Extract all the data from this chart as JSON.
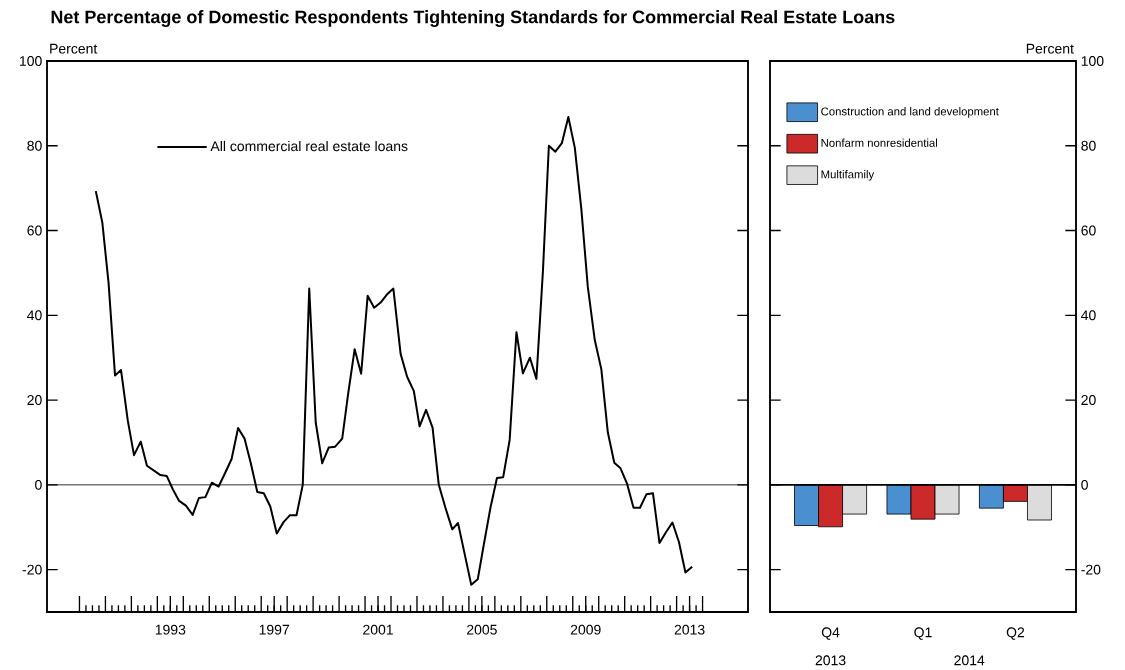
{
  "chart_data": [
    {
      "type": "line",
      "title": "Net Percentage of Domestic Respondents Tightening Standards for Commercial Real Estate Loans",
      "ylabel": "Percent",
      "xlim": [
        1988.75,
        2015.75
      ],
      "ylim": [
        -30,
        100
      ],
      "yticks": [
        -20,
        0,
        20,
        40,
        60,
        80,
        100
      ],
      "xticks": [
        {
          "value": 1990,
          "label": null
        },
        {
          "value": 1991,
          "label": null
        },
        {
          "value": 1992,
          "label": null
        },
        {
          "value": 1993,
          "label": null
        },
        {
          "value": 1994,
          "label": null
        },
        {
          "value": 1995,
          "label": null
        },
        {
          "value": 1996,
          "label": null
        },
        {
          "value": 1997,
          "label": null
        },
        {
          "value": 1998,
          "label": null
        },
        {
          "value": 1999,
          "label": null
        },
        {
          "value": 2000,
          "label": null
        },
        {
          "value": 2001,
          "label": null
        },
        {
          "value": 2002,
          "label": null
        },
        {
          "value": 2003,
          "label": null
        },
        {
          "value": 2004,
          "label": null
        },
        {
          "value": 2005,
          "label": null
        },
        {
          "value": 2006,
          "label": null
        },
        {
          "value": 2007,
          "label": null
        },
        {
          "value": 2008,
          "label": null
        },
        {
          "value": 2009,
          "label": null
        },
        {
          "value": 2010,
          "label": null
        },
        {
          "value": 2011,
          "label": null
        },
        {
          "value": 2012,
          "label": null
        },
        {
          "value": 2013,
          "label": null
        },
        {
          "value": 2014,
          "label": null
        },
        {
          "value": 1993.5,
          "label": "1993"
        },
        {
          "value": 1997.5,
          "label": "1997"
        },
        {
          "value": 2001.5,
          "label": "2001"
        },
        {
          "value": 2005.5,
          "label": "2005"
        },
        {
          "value": 2009.5,
          "label": "2009"
        },
        {
          "value": 2013.5,
          "label": "2013"
        }
      ],
      "legend": "top left",
      "ref_lines": [
        {
          "axis": "y",
          "value": 0
        }
      ],
      "series": [
        {
          "name": "All commercial real estate loans",
          "color": "#000000",
          "x": [
            1990.63,
            1990.88,
            1991.12,
            1991.37,
            1991.6,
            1991.86,
            1992.1,
            1992.36,
            1992.6,
            1992.86,
            1993.12,
            1993.36,
            1993.6,
            1993.84,
            1994.1,
            1994.36,
            1994.6,
            1994.85,
            1995.1,
            1995.36,
            1995.61,
            1995.86,
            1996.11,
            1996.36,
            1996.6,
            1996.85,
            1997.1,
            1997.35,
            1997.6,
            1997.86,
            1998.1,
            1998.36,
            1998.6,
            1998.85,
            1999.1,
            1999.35,
            1999.6,
            1999.85,
            2000.12,
            2000.35,
            2000.6,
            2000.85,
            2001.1,
            2001.35,
            2001.6,
            2001.84,
            2002.09,
            2002.37,
            2002.62,
            2002.88,
            2003.1,
            2003.35,
            2003.6,
            2003.84,
            2004.09,
            2004.36,
            2004.58,
            2004.84,
            2005.09,
            2005.34,
            2005.58,
            2005.83,
            2006.08,
            2006.32,
            2006.57,
            2006.83,
            2007.08,
            2007.35,
            2007.6,
            2007.85,
            2008.08,
            2008.33,
            2008.58,
            2008.83,
            2009.08,
            2009.33,
            2009.58,
            2009.85,
            2010.1,
            2010.35,
            2010.6,
            2010.84,
            2011.09,
            2011.34,
            2011.59,
            2011.84,
            2012.09,
            2012.34,
            2012.59,
            2012.84,
            2013.09,
            2013.34,
            2013.6
          ],
          "values": [
            69.3,
            61.9,
            47.7,
            25.8,
            27.1,
            15.2,
            7.0,
            10.2,
            4.5,
            3.4,
            2.3,
            2.1,
            -1.1,
            -3.8,
            -4.9,
            -7.1,
            -3.1,
            -2.9,
            0.5,
            -0.4,
            2.8,
            6.1,
            13.4,
            10.9,
            5.1,
            -1.7,
            -2.0,
            -5.1,
            -11.5,
            -8.8,
            -7.2,
            -7.2,
            0,
            46.3,
            14.7,
            5.1,
            8.8,
            9.0,
            10.9,
            21.5,
            32.0,
            26.2,
            44.6,
            41.8,
            43.0,
            44.9,
            46.3,
            30.9,
            25.5,
            22.1,
            13.8,
            17.7,
            13.5,
            0,
            -5.3,
            -10.5,
            -9.0,
            -16.4,
            -23.6,
            -22.3,
            -13.9,
            -5.4,
            1.6,
            1.8,
            10.6,
            36.0,
            26.3,
            30.0,
            25.0,
            50.3,
            80.0,
            78.6,
            80.6,
            86.8,
            79.5,
            65.1,
            46.7,
            34.1,
            27.3,
            12.4,
            5.2,
            3.9,
            0.3,
            -5.4,
            -5.4,
            -2.2,
            -2.0,
            -13.7,
            -11.2,
            -8.9,
            -13.5,
            -20.7,
            -19.3
          ]
        }
      ]
    },
    {
      "type": "bar",
      "ylabel": "Percent",
      "categories": [
        "Q4",
        "Q1",
        "Q2"
      ],
      "ylim": [
        -30,
        100
      ],
      "yticks": [
        -20,
        0,
        20,
        40,
        60,
        80,
        100
      ],
      "annotations": [
        "2013",
        "2014"
      ],
      "legend": "top left",
      "ref_lines": [
        {
          "axis": "y",
          "value": 0
        }
      ],
      "series": [
        {
          "name": "Construction and land development",
          "color": "#4a90d0",
          "values": [
            -9.6,
            -6.9,
            -5.5
          ]
        },
        {
          "name": "Nonfarm nonresidential",
          "color": "#cc2a2a",
          "values": [
            -9.9,
            -8.1,
            -3.9
          ]
        },
        {
          "name": "Multifamily",
          "color": "#dcdcdc",
          "values": [
            -6.9,
            -6.9,
            -8.3
          ]
        }
      ]
    }
  ]
}
